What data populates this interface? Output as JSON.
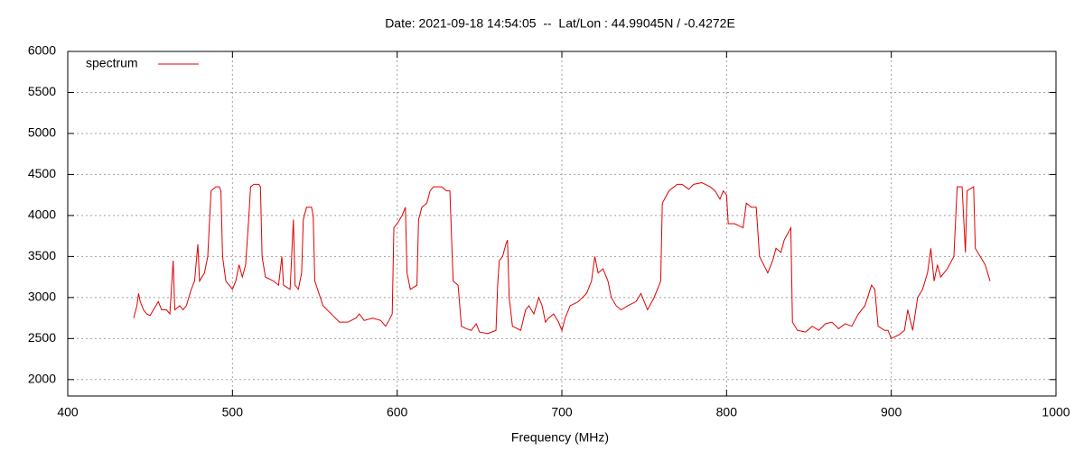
{
  "chart_data": {
    "type": "line",
    "title": "Date: 2021-09-18 14:54:05  --  Lat/Lon : 44.99045N / -0.4272E",
    "x_label": "Frequency (MHz)",
    "legend": "top-left",
    "grid": true,
    "xlim": [
      400,
      1000
    ],
    "xticks": [
      400,
      500,
      600,
      700,
      800,
      900,
      1000
    ],
    "ylim": [
      1800,
      6000
    ],
    "yticks": [
      2000,
      2500,
      3000,
      3500,
      4000,
      4500,
      5000,
      5500,
      6000
    ],
    "x": [
      440,
      442,
      443,
      444,
      446,
      448,
      450,
      452,
      455,
      457,
      460,
      462,
      464,
      465,
      468,
      470,
      472,
      475,
      477,
      479,
      480,
      483,
      485,
      486,
      487,
      490,
      492,
      493,
      494,
      496,
      500,
      502,
      504,
      506,
      508,
      510,
      511,
      513,
      516,
      517,
      518,
      520,
      525,
      528,
      530,
      531,
      535,
      537,
      538,
      540,
      542,
      543,
      545,
      548,
      549,
      550,
      555,
      560,
      565,
      570,
      575,
      577,
      580,
      585,
      590,
      593,
      595,
      597,
      598,
      600,
      603,
      605,
      606,
      608,
      612,
      613,
      615,
      618,
      620,
      622,
      627,
      630,
      632,
      634,
      637,
      639,
      642,
      645,
      648,
      650,
      655,
      660,
      661,
      662,
      664,
      666,
      667,
      668,
      670,
      675,
      678,
      680,
      683,
      686,
      688,
      690,
      692,
      695,
      698,
      700,
      702,
      705,
      710,
      715,
      718,
      720,
      722,
      725,
      728,
      730,
      733,
      736,
      740,
      745,
      748,
      752,
      756,
      760,
      761,
      765,
      770,
      773,
      777,
      780,
      785,
      790,
      793,
      796,
      798,
      800,
      801,
      805,
      810,
      812,
      815,
      818,
      820,
      825,
      828,
      830,
      833,
      835,
      839,
      840,
      843,
      848,
      852,
      856,
      860,
      864,
      868,
      872,
      876,
      880,
      884,
      888,
      890,
      892,
      896,
      898,
      900,
      905,
      908,
      910,
      913,
      916,
      919,
      922,
      924,
      926,
      928,
      930,
      934,
      938,
      940,
      943,
      945,
      946,
      950,
      951,
      954,
      957,
      960
    ],
    "series": [
      {
        "name": "spectrum",
        "color": "#e00000",
        "values": [
          2750,
          2900,
          3050,
          2950,
          2850,
          2800,
          2780,
          2850,
          2950,
          2850,
          2850,
          2800,
          3450,
          2850,
          2900,
          2850,
          2900,
          3100,
          3200,
          3650,
          3200,
          3300,
          3500,
          3900,
          4300,
          4350,
          4350,
          4300,
          3500,
          3200,
          3100,
          3200,
          3400,
          3250,
          3400,
          4000,
          4350,
          4380,
          4380,
          4350,
          3500,
          3250,
          3200,
          3150,
          3500,
          3150,
          3100,
          3950,
          3150,
          3100,
          3300,
          3950,
          4100,
          4100,
          4000,
          3200,
          2900,
          2800,
          2700,
          2700,
          2750,
          2800,
          2720,
          2750,
          2720,
          2650,
          2720,
          2800,
          3850,
          3900,
          4000,
          4100,
          3300,
          3100,
          3150,
          3950,
          4100,
          4150,
          4300,
          4350,
          4350,
          4300,
          4300,
          3200,
          3150,
          2650,
          2620,
          2600,
          2680,
          2580,
          2560,
          2600,
          3150,
          3450,
          3500,
          3650,
          3700,
          3000,
          2650,
          2600,
          2850,
          2900,
          2800,
          3000,
          2900,
          2700,
          2750,
          2800,
          2700,
          2600,
          2750,
          2900,
          2950,
          3050,
          3200,
          3500,
          3300,
          3350,
          3200,
          3000,
          2900,
          2850,
          2900,
          2950,
          3050,
          2850,
          3000,
          3200,
          4150,
          4300,
          4380,
          4380,
          4320,
          4380,
          4400,
          4350,
          4300,
          4200,
          4300,
          4250,
          3900,
          3900,
          3850,
          4150,
          4100,
          4100,
          3500,
          3300,
          3450,
          3600,
          3550,
          3700,
          3850,
          2700,
          2600,
          2580,
          2650,
          2600,
          2680,
          2700,
          2620,
          2680,
          2650,
          2800,
          2900,
          3150,
          3100,
          2650,
          2600,
          2600,
          2500,
          2550,
          2600,
          2850,
          2600,
          3000,
          3100,
          3300,
          3600,
          3200,
          3400,
          3250,
          3350,
          3500,
          4350,
          4350,
          3550,
          4300,
          4350,
          3600,
          3500,
          3400,
          3200
        ]
      }
    ]
  }
}
